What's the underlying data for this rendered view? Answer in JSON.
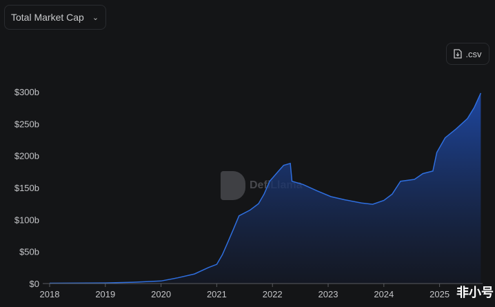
{
  "header": {
    "metric_select": "Total Market Cap",
    "csv_label": ".csv"
  },
  "watermark": "DefiLlama",
  "corner_watermark": "非小号",
  "colors": {
    "background": "#141517",
    "line": "#2f6fe0",
    "area_top": "#1f4aa8",
    "area_bottom": "#141a2a"
  },
  "chart_data": {
    "type": "area",
    "title": "",
    "xlabel": "",
    "ylabel": "",
    "xlim": [
      2017.9,
      2025.78
    ],
    "ylim": [
      0,
      300
    ],
    "grid": false,
    "y_ticks": [
      {
        "v": 0,
        "label": "$0"
      },
      {
        "v": 50,
        "label": "$50b"
      },
      {
        "v": 100,
        "label": "$100b"
      },
      {
        "v": 150,
        "label": "$150b"
      },
      {
        "v": 200,
        "label": "$200b"
      },
      {
        "v": 250,
        "label": "$250b"
      },
      {
        "v": 300,
        "label": "$300b"
      }
    ],
    "x_ticks": [
      {
        "v": 2018,
        "label": "2018"
      },
      {
        "v": 2019,
        "label": "2019"
      },
      {
        "v": 2020,
        "label": "2020"
      },
      {
        "v": 2021,
        "label": "2021"
      },
      {
        "v": 2022,
        "label": "2022"
      },
      {
        "v": 2023,
        "label": "2023"
      },
      {
        "v": 2024,
        "label": "2024"
      },
      {
        "v": 2025,
        "label": "2025"
      }
    ],
    "series": [
      {
        "x": [
          2018.0,
          2019.0,
          2019.5,
          2020.0,
          2020.3,
          2020.6,
          2020.85,
          2021.0,
          2021.1,
          2021.2,
          2021.3,
          2021.4,
          2021.6,
          2021.75,
          2021.85,
          2021.95,
          2022.1,
          2022.2,
          2022.32,
          2022.35,
          2022.55,
          2022.8,
          2023.05,
          2023.3,
          2023.6,
          2023.8,
          2024.0,
          2024.15,
          2024.3,
          2024.55,
          2024.7,
          2024.88,
          2024.95,
          2025.1,
          2025.3,
          2025.5,
          2025.62,
          2025.74
        ],
        "y": [
          0.5,
          1,
          2,
          4,
          9,
          15,
          25,
          30,
          45,
          65,
          85,
          106,
          115,
          125,
          140,
          160,
          175,
          185,
          188,
          160,
          155,
          145,
          136,
          131,
          126,
          124,
          130,
          140,
          160,
          163,
          172,
          176,
          205,
          228,
          242,
          258,
          275,
          298
        ]
      }
    ]
  }
}
